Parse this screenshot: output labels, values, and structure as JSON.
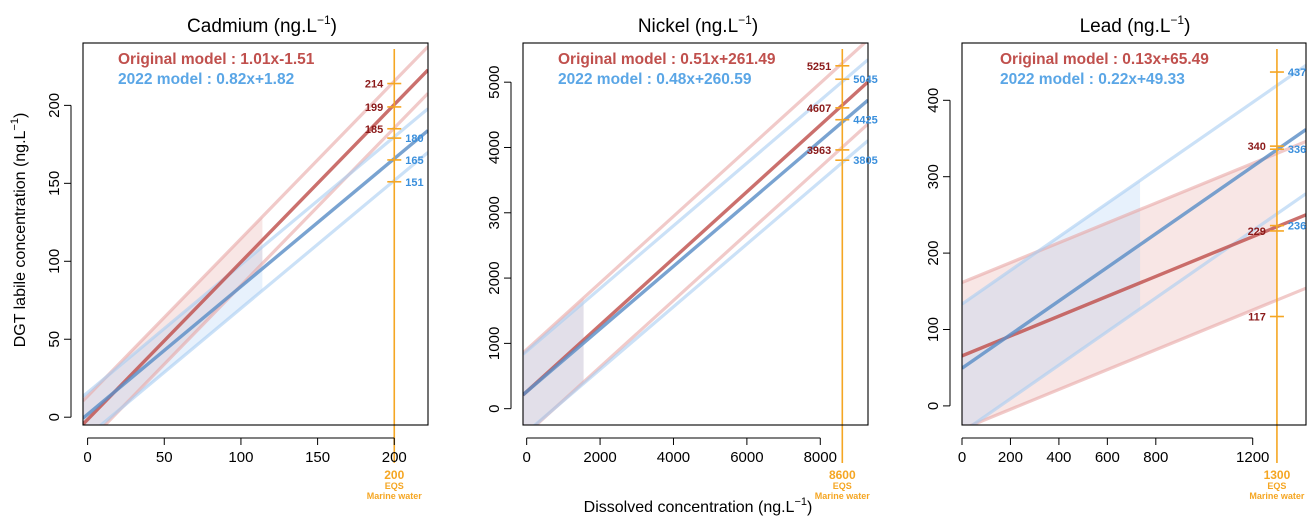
{
  "figure": {
    "ylabel": "DGT labile concentration (ng.L",
    "ylabel_sup": "−1",
    "ylabel_end": ")",
    "xlabel": "Dissolved concentration (ng.L",
    "xlabel_sup": "−1",
    "xlabel_end": ")"
  },
  "chart_data": [
    {
      "type": "line",
      "title": "Cadmium (ng.L",
      "title_sup": "−1",
      "title_end": ")",
      "xlim": [
        -3,
        222
      ],
      "ylim": [
        -5,
        240
      ],
      "xticks": [
        0,
        50,
        100,
        150,
        200
      ],
      "yticks": [
        0,
        50,
        100,
        150,
        200
      ],
      "series": [
        {
          "label": "Original model : 1.01x-1.51",
          "slope": 1.01,
          "intercept": -1.51,
          "band": 15,
          "band_xmax": 114,
          "color": "#c0504d"
        },
        {
          "label": "2022 model : 0.82x+1.82",
          "slope": 0.82,
          "intercept": 1.82,
          "band": 14,
          "band_xmax": 114,
          "color": "#5b8fc7"
        }
      ],
      "eqs": {
        "x": 200,
        "label": "200",
        "sub1": "EQS",
        "sub2": "Marine water"
      },
      "values_original": [
        "214",
        "199",
        "185"
      ],
      "values_original_y": [
        214,
        199,
        185
      ],
      "values_2022": [
        "180",
        "165",
        "151"
      ],
      "values_2022_y": [
        179,
        165,
        151
      ]
    },
    {
      "type": "line",
      "title": "Nickel (ng.L",
      "title_sup": "−1",
      "title_end": ")",
      "xlim": [
        -100,
        9300
      ],
      "ylim": [
        -250,
        5600
      ],
      "xticks": [
        0,
        2000,
        4000,
        6000,
        8000
      ],
      "yticks": [
        0,
        1000,
        2000,
        3000,
        4000,
        5000
      ],
      "series": [
        {
          "label": "Original model : 0.51x+261.49",
          "slope": 0.51,
          "intercept": 261.49,
          "band": 644,
          "band_xmax": 1550,
          "color": "#c0504d"
        },
        {
          "label": "2022 model : 0.48x+260.59",
          "slope": 0.48,
          "intercept": 260.59,
          "band": 620,
          "band_xmax": 1550,
          "color": "#5b8fc7"
        }
      ],
      "eqs": {
        "x": 8600,
        "label": "8600",
        "sub1": "EQS",
        "sub2": "Marine water"
      },
      "values_original": [
        "5251",
        "4607",
        "3963"
      ],
      "values_original_y": [
        5251,
        4607,
        3963
      ],
      "values_2022": [
        "5045",
        "4425",
        "3805"
      ],
      "values_2022_y": [
        5045,
        4425,
        3805
      ]
    },
    {
      "type": "line",
      "title": "Lead (ng.L",
      "title_sup": "−1",
      "title_end": ")",
      "xlim": [
        0,
        1420
      ],
      "ylim": [
        -25,
        475
      ],
      "xticks": [
        0,
        200,
        400,
        600,
        800,
        1200
      ],
      "yticks": [
        0,
        100,
        200,
        300,
        400
      ],
      "series": [
        {
          "label": "Original model : 0.13x+65.49",
          "slope": 0.13,
          "intercept": 65.49,
          "band": 96,
          "band_xmax": 1300,
          "color": "#c0504d"
        },
        {
          "label": "2022 model : 0.22x+49.33",
          "slope": 0.22,
          "intercept": 49.33,
          "band": 84,
          "band_xmax": 735,
          "color": "#5b8fc7"
        }
      ],
      "eqs": {
        "x": 1300,
        "label": "1300",
        "sub1": "EQS",
        "sub2": "Marine water"
      },
      "values_original": [
        "340",
        "229",
        "117"
      ],
      "values_original_y": [
        340,
        229,
        117
      ],
      "values_2022": [
        "437",
        "336",
        "236"
      ],
      "values_2022_y": [
        437,
        336,
        236
      ]
    }
  ]
}
